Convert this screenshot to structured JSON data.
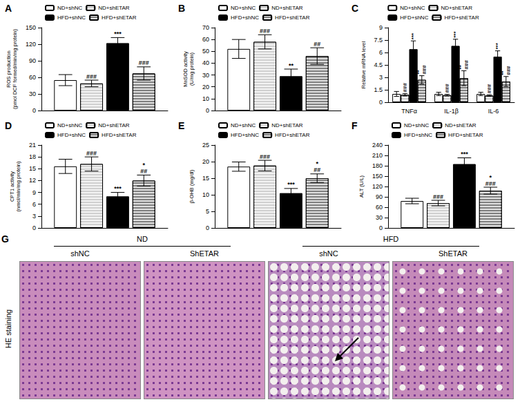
{
  "chart_data": [
    {
      "type": "bar",
      "title": "A",
      "y_label": "ROS production\n(pmol DCF formed/min/mg protein)",
      "categories": [
        null
      ],
      "ylim": [
        0,
        150
      ],
      "yticks": [
        0,
        30,
        60,
        90,
        120,
        150
      ],
      "grid": false,
      "legend": "top-left",
      "tick_labels": "y",
      "series": [
        {
          "name": "ND+shNC",
          "color": "#ffffff",
          "values": [
            55
          ],
          "errors": [
            10
          ],
          "annotations": [
            null
          ]
        },
        {
          "name": "ND+shETAR",
          "color": "#d0d0d0",
          "values": [
            49
          ],
          "errors": [
            6
          ],
          "annotations": [
            "###"
          ]
        },
        {
          "name": "HFD+shNC",
          "color": "#000000",
          "values": [
            122
          ],
          "errors": [
            10
          ],
          "annotations": [
            "***"
          ]
        },
        {
          "name": "HFD+shETAR",
          "color": "#808080",
          "values": [
            67
          ],
          "errors": [
            12
          ],
          "annotations": [
            "###"
          ]
        }
      ]
    },
    {
      "type": "bar",
      "title": "B",
      "y_label": "MnSOD activity\n(U/mg protein)",
      "categories": [
        null
      ],
      "ylim": [
        0,
        70
      ],
      "yticks": [
        0,
        10,
        20,
        30,
        40,
        50,
        60,
        70
      ],
      "grid": false,
      "legend": "top-left",
      "tick_labels": "y",
      "series": [
        {
          "name": "ND+shNC",
          "color": "#ffffff",
          "values": [
            52
          ],
          "errors": [
            8
          ],
          "annotations": [
            null
          ]
        },
        {
          "name": "ND+shETAR",
          "color": "#d0d0d0",
          "values": [
            58
          ],
          "errors": [
            6
          ],
          "annotations": [
            "###"
          ]
        },
        {
          "name": "HFD+shNC",
          "color": "#000000",
          "values": [
            29
          ],
          "errors": [
            6
          ],
          "annotations": [
            "**"
          ]
        },
        {
          "name": "HFD+shETAR",
          "color": "#808080",
          "values": [
            46
          ],
          "errors": [
            7
          ],
          "annotations": [
            "##"
          ]
        }
      ]
    },
    {
      "type": "bar",
      "title": "C",
      "y_label": "Relative mRNA level",
      "categories": [
        "TNFα",
        "IL-1β",
        "IL-6"
      ],
      "ylim": [
        0,
        9
      ],
      "yticks": [
        0,
        1.5,
        3,
        4.5,
        6,
        7.5,
        9
      ],
      "grid": false,
      "legend": "top",
      "tick_labels": true,
      "series": [
        {
          "name": "ND+shNC",
          "color": "#ffffff",
          "values": [
            1.0,
            1.0,
            1.0
          ],
          "errors": [
            0.3,
            0.2,
            0.2
          ],
          "annotations": [
            null,
            null,
            null
          ]
        },
        {
          "name": "ND+shETAR",
          "color": "#d0d0d0",
          "values": [
            0.9,
            0.85,
            0.8
          ],
          "errors": [
            0.15,
            0.1,
            0.1
          ],
          "annotations": [
            "###",
            "###",
            "###"
          ]
        },
        {
          "name": "HFD+shNC",
          "color": "#000000",
          "values": [
            6.4,
            6.8,
            5.5
          ],
          "errors": [
            1.0,
            0.8,
            0.7
          ],
          "annotations": [
            "***",
            "***",
            "***"
          ]
        },
        {
          "name": "HFD+shETAR",
          "color": "#808080",
          "values": [
            2.7,
            2.9,
            2.5
          ],
          "errors": [
            0.5,
            0.9,
            0.6
          ],
          "annotations": [
            "**\n###",
            "**\n###",
            "**\n###"
          ]
        }
      ]
    },
    {
      "type": "bar",
      "title": "D",
      "y_label": "CPT1 activity\n(nmol/min/mg protein)",
      "categories": [
        null
      ],
      "ylim": [
        0,
        21
      ],
      "yticks": [
        0,
        3,
        6,
        9,
        12,
        15,
        18,
        21
      ],
      "grid": false,
      "legend": "top-left",
      "tick_labels": "y",
      "series": [
        {
          "name": "ND+shNC",
          "color": "#ffffff",
          "values": [
            15.6
          ],
          "errors": [
            1.8
          ],
          "annotations": [
            null
          ]
        },
        {
          "name": "ND+shETAR",
          "color": "#d0d0d0",
          "values": [
            16.2
          ],
          "errors": [
            1.8
          ],
          "annotations": [
            "###"
          ]
        },
        {
          "name": "HFD+shNC",
          "color": "#000000",
          "values": [
            8.0
          ],
          "errors": [
            1.0
          ],
          "annotations": [
            "***"
          ]
        },
        {
          "name": "HFD+shETAR",
          "color": "#808080",
          "values": [
            12.0
          ],
          "errors": [
            1.4
          ],
          "annotations": [
            "*\n##"
          ]
        }
      ]
    },
    {
      "type": "bar",
      "title": "E",
      "y_label": "β-OHB (mg/dl)",
      "categories": [
        null
      ],
      "ylim": [
        0,
        25
      ],
      "yticks": [
        0,
        5,
        10,
        15,
        20,
        25
      ],
      "grid": false,
      "legend": "top-left",
      "tick_labels": "y",
      "series": [
        {
          "name": "ND+shNC",
          "color": "#ffffff",
          "values": [
            18.5
          ],
          "errors": [
            1.4
          ],
          "annotations": [
            null
          ]
        },
        {
          "name": "ND+shETAR",
          "color": "#d0d0d0",
          "values": [
            18.8
          ],
          "errors": [
            1.6
          ],
          "annotations": [
            "###"
          ]
        },
        {
          "name": "HFD+shNC",
          "color": "#000000",
          "values": [
            10.5
          ],
          "errors": [
            1.4
          ],
          "annotations": [
            "***"
          ]
        },
        {
          "name": "HFD+shETAR",
          "color": "#808080",
          "values": [
            15.0
          ],
          "errors": [
            1.3
          ],
          "annotations": [
            "*\n##"
          ]
        }
      ]
    },
    {
      "type": "bar",
      "title": "F",
      "y_label": "ALT (U/L)",
      "categories": [
        null
      ],
      "ylim": [
        0,
        240
      ],
      "yticks": [
        0,
        30,
        60,
        90,
        120,
        150,
        180,
        210,
        240
      ],
      "grid": false,
      "legend": "top-left",
      "tick_labels": "y",
      "series": [
        {
          "name": "ND+shNC",
          "color": "#ffffff",
          "values": [
            78
          ],
          "errors": [
            8
          ],
          "annotations": [
            null
          ]
        },
        {
          "name": "ND+shETAR",
          "color": "#d0d0d0",
          "values": [
            72
          ],
          "errors": [
            8
          ],
          "annotations": [
            "###"
          ]
        },
        {
          "name": "HFD+shNC",
          "color": "#000000",
          "values": [
            185
          ],
          "errors": [
            18
          ],
          "annotations": [
            "***"
          ]
        },
        {
          "name": "HFD+shETAR",
          "color": "#808080",
          "values": [
            108
          ],
          "errors": [
            10
          ],
          "annotations": [
            "*\n###"
          ]
        }
      ]
    }
  ],
  "panel_g": {
    "title": "G",
    "row_label": "HE staining",
    "groups": [
      {
        "label": "ND",
        "columns": [
          "shNC",
          "ShETAR"
        ]
      },
      {
        "label": "HFD",
        "columns": [
          "shNC",
          "ShETAR"
        ]
      }
    ]
  }
}
